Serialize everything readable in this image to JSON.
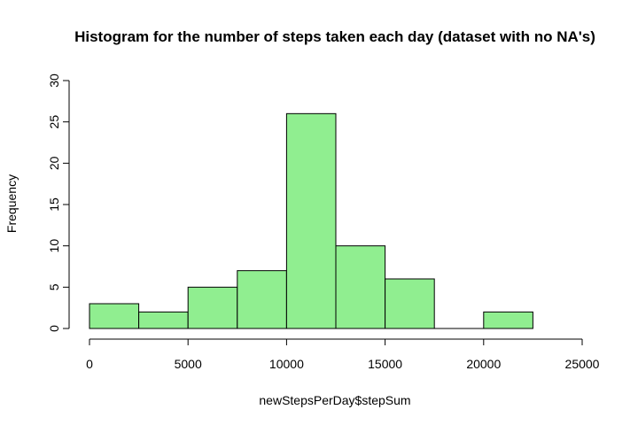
{
  "chart_data": {
    "type": "bar",
    "title": "Histogram for the number of steps taken each day (dataset with no NA's)",
    "xlabel": "newStepsPerDay$stepSum",
    "ylabel": "Frequency",
    "bin_edges": [
      0,
      2500,
      5000,
      7500,
      10000,
      12500,
      15000,
      17500,
      20000,
      22500
    ],
    "values": [
      3,
      2,
      5,
      7,
      26,
      10,
      6,
      0,
      2
    ],
    "xlim": [
      0,
      25000
    ],
    "ylim": [
      0,
      30
    ],
    "x_ticks": [
      0,
      5000,
      10000,
      15000,
      20000,
      25000
    ],
    "y_ticks": [
      0,
      5,
      10,
      15,
      20,
      25,
      30
    ],
    "bar_color": "#90EE90",
    "grid": false,
    "legend": "none"
  }
}
